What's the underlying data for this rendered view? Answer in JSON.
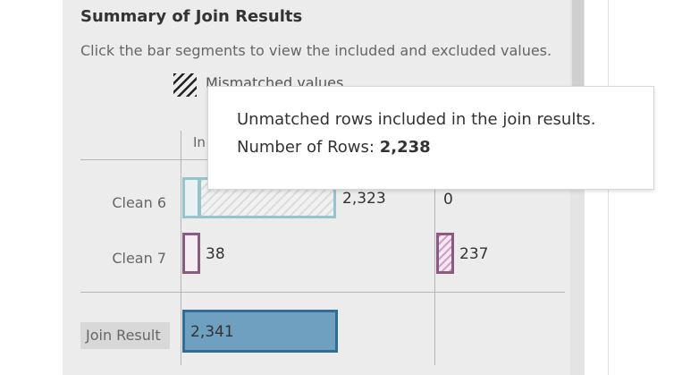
{
  "summary": {
    "title": "Summary of Join Results",
    "subtitle": "Click the bar segments to view the included and excluded values.",
    "legend": {
      "label": "Mismatched values",
      "icon": "hatch-pattern-icon"
    },
    "column_header_partial": "In"
  },
  "rows": [
    {
      "label": "Clean 6",
      "included_value": "2,323",
      "excluded_value": "0",
      "color": "#96c4cc"
    },
    {
      "label": "Clean 7",
      "included_value": "38",
      "excluded_value": "237",
      "color": "#8b5a80"
    }
  ],
  "join_result": {
    "label": "Join Result",
    "value": "2,341",
    "color": "#2f6d96"
  },
  "tooltip": {
    "line1": "Unmatched rows included in the join results.",
    "rows_label": "Number of Rows:",
    "rows_value": "2,238"
  }
}
